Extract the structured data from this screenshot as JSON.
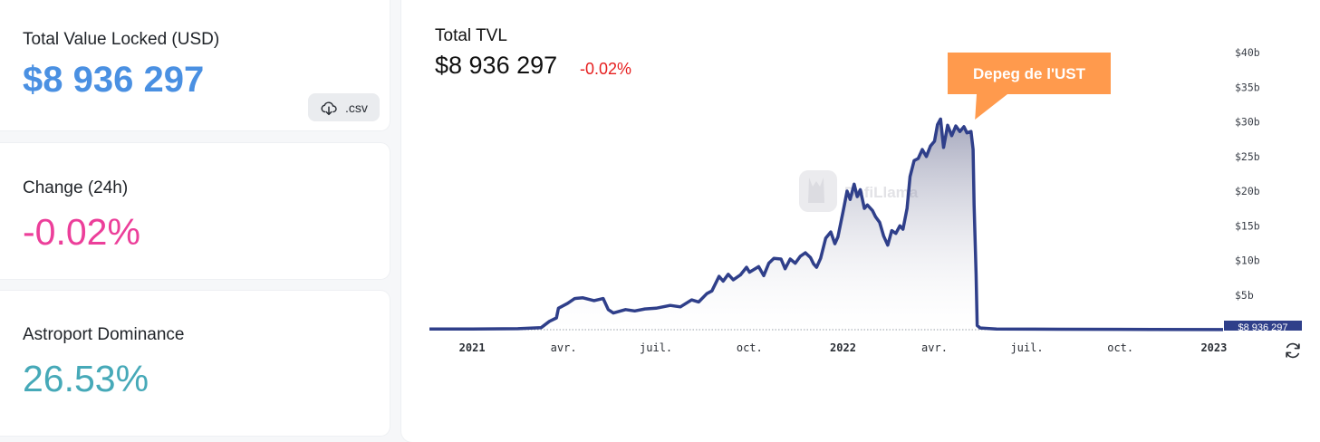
{
  "cards": {
    "tvl": {
      "label": "Total Value Locked (USD)",
      "value": "$8 936 297",
      "csv_label": ".csv",
      "value_color": "#4a90e2"
    },
    "change": {
      "label": "Change (24h)",
      "value": "-0.02%",
      "value_color": "#ec3f9a"
    },
    "dominance": {
      "label": "Astroport Dominance",
      "value": "26.53%",
      "value_color": "#46a9b8"
    }
  },
  "chart": {
    "title": "Total TVL",
    "value": "$8 936 297",
    "change": "-0.02%",
    "watermark": "DefiLlama",
    "annotation": "Depeg de l'UST",
    "current_label": "$8 936 297"
  },
  "colors": {
    "line": "#2f3f8a",
    "annotation_bg": "#ff9a4d",
    "negative": "#e61e1e",
    "watermark": "#e4e4e8"
  },
  "icons": {
    "csv": "cloud-download-icon",
    "refresh": "refresh-icon",
    "watermark": "llama-logo-icon"
  },
  "chart_data": {
    "type": "area",
    "title": "Total TVL",
    "xlabel": "",
    "ylabel": "",
    "ylim": [
      0,
      40
    ],
    "y_unit": "billions USD",
    "yticks": [
      "$5b",
      "$10b",
      "$15b",
      "$20b",
      "$25b",
      "$30b",
      "$35b",
      "$40b"
    ],
    "xticks": [
      {
        "date": "2021-01-01",
        "label": "2021",
        "bold": true
      },
      {
        "date": "2021-04-01",
        "label": "avr.",
        "bold": false
      },
      {
        "date": "2021-07-01",
        "label": "juil.",
        "bold": false
      },
      {
        "date": "2021-10-01",
        "label": "oct.",
        "bold": false
      },
      {
        "date": "2022-01-01",
        "label": "2022",
        "bold": true
      },
      {
        "date": "2022-04-01",
        "label": "avr.",
        "bold": false
      },
      {
        "date": "2022-07-01",
        "label": "juil.",
        "bold": false
      },
      {
        "date": "2022-10-01",
        "label": "oct.",
        "bold": false
      },
      {
        "date": "2023-01-01",
        "label": "2023",
        "bold": true
      }
    ],
    "x_range": [
      "2020-11-20",
      "2023-01-10"
    ],
    "grid": false,
    "annotation": {
      "text": "Depeg de l'UST",
      "date": "2022-05-10"
    },
    "series": [
      {
        "points": [
          [
            "2020-11-20",
            0.1
          ],
          [
            "2021-01-01",
            0.1
          ],
          [
            "2021-02-15",
            0.15
          ],
          [
            "2021-03-10",
            0.3
          ],
          [
            "2021-03-18",
            1.2
          ],
          [
            "2021-03-25",
            1.7
          ],
          [
            "2021-03-27",
            3.1
          ],
          [
            "2021-04-05",
            3.8
          ],
          [
            "2021-04-12",
            4.5
          ],
          [
            "2021-04-20",
            4.6
          ],
          [
            "2021-05-01",
            4.2
          ],
          [
            "2021-05-10",
            4.5
          ],
          [
            "2021-05-15",
            2.9
          ],
          [
            "2021-05-20",
            2.4
          ],
          [
            "2021-06-01",
            2.9
          ],
          [
            "2021-06-10",
            2.7
          ],
          [
            "2021-06-20",
            3.0
          ],
          [
            "2021-07-01",
            3.1
          ],
          [
            "2021-07-15",
            3.5
          ],
          [
            "2021-07-25",
            3.3
          ],
          [
            "2021-08-05",
            4.3
          ],
          [
            "2021-08-12",
            4.0
          ],
          [
            "2021-08-20",
            5.2
          ],
          [
            "2021-08-25",
            5.6
          ],
          [
            "2021-09-01",
            7.7
          ],
          [
            "2021-09-05",
            7.0
          ],
          [
            "2021-09-10",
            8.0
          ],
          [
            "2021-09-15",
            7.2
          ],
          [
            "2021-09-22",
            7.9
          ],
          [
            "2021-09-28",
            9.0
          ],
          [
            "2021-10-01",
            8.3
          ],
          [
            "2021-10-10",
            9.1
          ],
          [
            "2021-10-15",
            7.8
          ],
          [
            "2021-10-20",
            9.6
          ],
          [
            "2021-10-25",
            10.3
          ],
          [
            "2021-11-01",
            10.2
          ],
          [
            "2021-11-05",
            8.8
          ],
          [
            "2021-11-10",
            10.2
          ],
          [
            "2021-11-15",
            9.6
          ],
          [
            "2021-11-20",
            10.6
          ],
          [
            "2021-11-25",
            11.1
          ],
          [
            "2021-11-30",
            10.4
          ],
          [
            "2021-12-03",
            9.5
          ],
          [
            "2021-12-06",
            9.0
          ],
          [
            "2021-12-10",
            10.3
          ],
          [
            "2021-12-15",
            13.2
          ],
          [
            "2021-12-20",
            14.1
          ],
          [
            "2021-12-24",
            12.4
          ],
          [
            "2021-12-27",
            13.4
          ],
          [
            "2022-01-01",
            17.0
          ],
          [
            "2022-01-05",
            20.0
          ],
          [
            "2022-01-08",
            18.8
          ],
          [
            "2022-01-12",
            21.0
          ],
          [
            "2022-01-15",
            19.2
          ],
          [
            "2022-01-18",
            20.2
          ],
          [
            "2022-01-22",
            17.5
          ],
          [
            "2022-01-25",
            18.0
          ],
          [
            "2022-01-30",
            17.2
          ],
          [
            "2022-02-02",
            16.3
          ],
          [
            "2022-02-06",
            15.5
          ],
          [
            "2022-02-10",
            13.5
          ],
          [
            "2022-02-14",
            12.2
          ],
          [
            "2022-02-18",
            14.3
          ],
          [
            "2022-02-22",
            13.9
          ],
          [
            "2022-02-26",
            15.0
          ],
          [
            "2022-03-01",
            14.5
          ],
          [
            "2022-03-05",
            17.5
          ],
          [
            "2022-03-08",
            22.1
          ],
          [
            "2022-03-12",
            24.4
          ],
          [
            "2022-03-16",
            24.7
          ],
          [
            "2022-03-20",
            26.0
          ],
          [
            "2022-03-24",
            25.0
          ],
          [
            "2022-03-28",
            26.5
          ],
          [
            "2022-04-01",
            27.2
          ],
          [
            "2022-04-04",
            29.6
          ],
          [
            "2022-04-07",
            30.4
          ],
          [
            "2022-04-10",
            26.3
          ],
          [
            "2022-04-14",
            29.5
          ],
          [
            "2022-04-18",
            28.0
          ],
          [
            "2022-04-22",
            29.4
          ],
          [
            "2022-04-26",
            28.6
          ],
          [
            "2022-04-30",
            29.3
          ],
          [
            "2022-05-03",
            28.4
          ],
          [
            "2022-05-07",
            28.6
          ],
          [
            "2022-05-09",
            26.0
          ],
          [
            "2022-05-10",
            18.0
          ],
          [
            "2022-05-12",
            8.0
          ],
          [
            "2022-05-13",
            0.6
          ],
          [
            "2022-05-16",
            0.25
          ],
          [
            "2022-06-01",
            0.1
          ],
          [
            "2022-08-01",
            0.07
          ],
          [
            "2022-10-01",
            0.05
          ],
          [
            "2023-01-10",
            0.01
          ]
        ]
      }
    ]
  }
}
